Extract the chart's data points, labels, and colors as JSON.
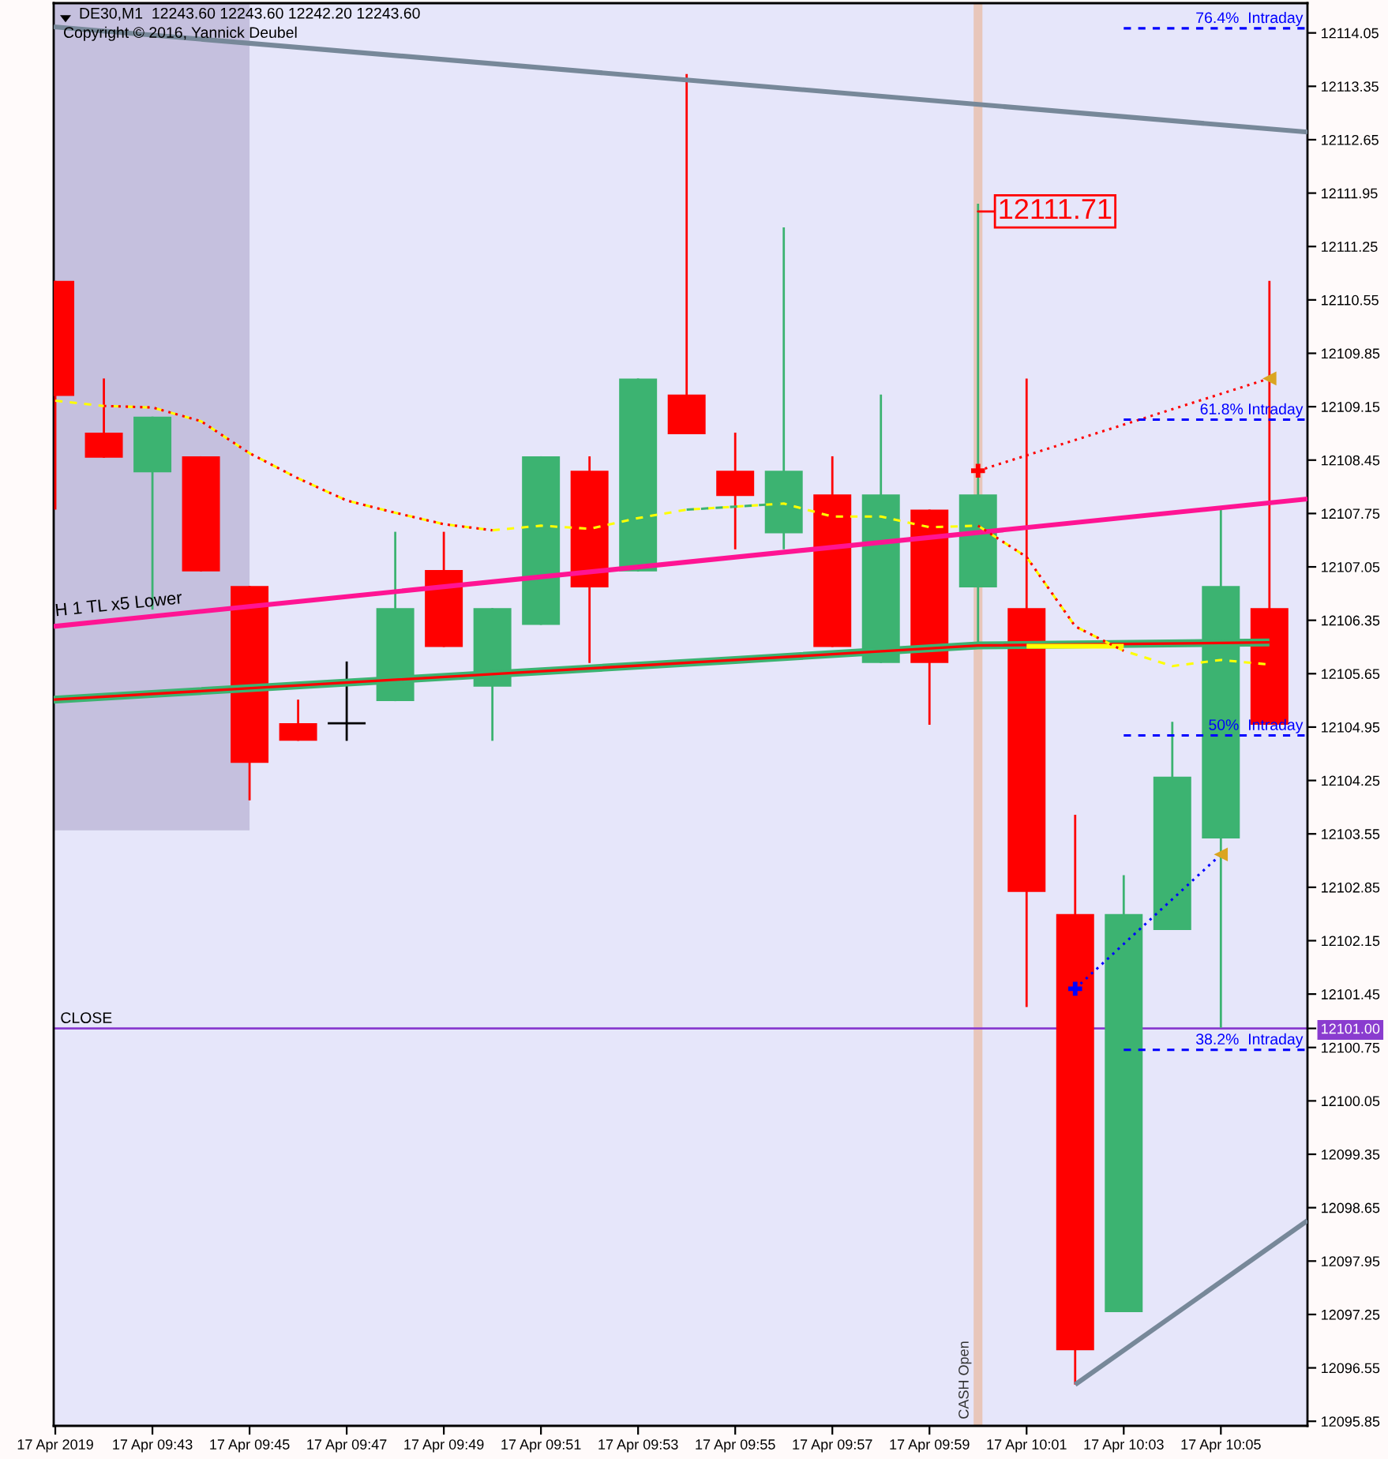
{
  "chart_data": {
    "type": "candlestick",
    "title": "DE30,M1  12243.60 12243.60 12242.20 12243.60",
    "annotations": [
      "Copyright © 2016, Yannick Deubel",
      {
        "text": "12111.71",
        "x": "2019-04-17T10:00",
        "y": 12111.71
      }
    ],
    "x": [
      "2019-04-17T09:41",
      "2019-04-17T09:42",
      "2019-04-17T09:43",
      "2019-04-17T09:44",
      "2019-04-17T09:45",
      "2019-04-17T09:46",
      "2019-04-17T09:47",
      "2019-04-17T09:48",
      "2019-04-17T09:49",
      "2019-04-17T09:50",
      "2019-04-17T09:51",
      "2019-04-17T09:52",
      "2019-04-17T09:53",
      "2019-04-17T09:54",
      "2019-04-17T09:55",
      "2019-04-17T09:56",
      "2019-04-17T09:57",
      "2019-04-17T09:58",
      "2019-04-17T09:59",
      "2019-04-17T10:00",
      "2019-04-17T10:01",
      "2019-04-17T10:02",
      "2019-04-17T10:03",
      "2019-04-17T10:04",
      "2019-04-17T10:05",
      "2019-04-17T10:06"
    ],
    "ohlc": [
      [
        12110.8,
        12110.8,
        12107.8,
        12109.29
      ],
      [
        12108.81,
        12109.52,
        12108.48,
        12108.48
      ],
      [
        12108.29,
        12109.02,
        12106.49,
        12109.02
      ],
      [
        12108.5,
        12108.5,
        12106.99,
        12106.99
      ],
      [
        12106.8,
        12106.8,
        12103.99,
        12104.48
      ],
      [
        12105.0,
        12105.31,
        12104.77,
        12104.77
      ],
      [
        12105.0,
        12105.81,
        12104.77,
        12105.0
      ],
      [
        12105.29,
        12107.51,
        12105.29,
        12106.51
      ],
      [
        12107.01,
        12107.51,
        12106.0,
        12106.0
      ],
      [
        12105.48,
        12106.51,
        12104.77,
        12106.51
      ],
      [
        12106.29,
        12108.5,
        12106.29,
        12108.5
      ],
      [
        12108.31,
        12108.5,
        12105.79,
        12106.78
      ],
      [
        12106.99,
        12109.52,
        12106.99,
        12109.52
      ],
      [
        12109.31,
        12113.51,
        12108.79,
        12108.79
      ],
      [
        12108.31,
        12108.81,
        12107.28,
        12107.98
      ],
      [
        12107.49,
        12111.5,
        12107.28,
        12108.31
      ],
      [
        12108.0,
        12108.5,
        12106.0,
        12106.0
      ],
      [
        12105.79,
        12109.31,
        12105.79,
        12108.0
      ],
      [
        12107.8,
        12107.8,
        12104.98,
        12105.79
      ],
      [
        12106.78,
        12111.81,
        12106.0,
        12108.0
      ],
      [
        12106.51,
        12109.52,
        12101.28,
        12102.79
      ],
      [
        12102.5,
        12103.8,
        12096.33,
        12096.78
      ],
      [
        12097.28,
        12103.01,
        12097.28,
        12102.5
      ],
      [
        12102.29,
        12105.02,
        12102.29,
        12104.3
      ],
      [
        12103.49,
        12107.8,
        12101.01,
        12106.8
      ],
      [
        12106.51,
        12110.8,
        12104.98,
        12104.98
      ]
    ],
    "colors": [
      "#ff0000",
      "#ff0000",
      "#3cb371",
      "#ff0000",
      "#ff0000",
      "#ff0000",
      "#000000",
      "#3cb371",
      "#ff0000",
      "#3cb371",
      "#3cb371",
      "#ff0000",
      "#3cb371",
      "#ff0000",
      "#ff0000",
      "#3cb371",
      "#ff0000",
      "#3cb371",
      "#ff0000",
      "#3cb371",
      "#ff0000",
      "#ff0000",
      "#3cb371",
      "#3cb371",
      "#3cb371",
      "#ff0000"
    ],
    "series": [
      {
        "type": "line",
        "x": [
          "2019-04-17T09:40:58",
          "2019-04-17T09:45"
        ],
        "values": [
          12103.61,
          12103.61
        ],
        "lower": [
          12103.61,
          12103.61
        ],
        "upper": [
          12114.44,
          12114.44
        ],
        "color": "#c5c0de"
      },
      {
        "type": "line",
        "x": [
          "2019-04-17T09:40:58",
          "2019-04-17T10:06:47"
        ],
        "values": [
          12114.13,
          12112.75
        ],
        "color": "#778899"
      },
      {
        "type": "line",
        "x": [
          "2019-04-17T10:02",
          "2019-04-17T10:06:47"
        ],
        "values": [
          12096.33,
          12098.48
        ],
        "color": "#778899"
      },
      {
        "type": "line",
        "name": "H 1 TL x5 Lower",
        "x": [
          "2019-04-17T09:40:58",
          "2019-04-17T10:06:47"
        ],
        "values": [
          12106.27,
          12107.94
        ],
        "color": "#ff1493"
      },
      {
        "type": "line",
        "x": [
          "2019-04-17T09:40:58",
          "2019-04-17T09:55",
          "2019-04-17T10:00",
          "2019-04-17T10:06"
        ],
        "values": [
          12105.31,
          12105.83,
          12106.02,
          12106.06
        ],
        "color": "#3cb371"
      },
      {
        "type": "line",
        "x": [
          "2019-04-17T09:40:58",
          "2019-04-17T09:55",
          "2019-04-17T10:00",
          "2019-04-17T10:06"
        ],
        "values": [
          12105.31,
          12105.83,
          12106.02,
          12106.06
        ],
        "color": "#ff0000"
      },
      {
        "type": "line",
        "x": [
          "2019-04-17T10:01",
          "2019-04-17T10:03"
        ],
        "values": [
          12106.01,
          12106.01
        ],
        "color": "#ffff00"
      },
      {
        "type": "line",
        "line_style": "dashed",
        "color": "#ffff00",
        "x": [
          "2019-04-17T09:41",
          "2019-04-17T09:42",
          "2019-04-17T09:43",
          "2019-04-17T09:44",
          "2019-04-17T09:45",
          "2019-04-17T09:46",
          "2019-04-17T09:47",
          "2019-04-17T09:48",
          "2019-04-17T09:49",
          "2019-04-17T09:50",
          "2019-04-17T09:51",
          "2019-04-17T09:52",
          "2019-04-17T09:53",
          "2019-04-17T09:54",
          "2019-04-17T09:55",
          "2019-04-17T09:56",
          "2019-04-17T09:57",
          "2019-04-17T09:58",
          "2019-04-17T09:59",
          "2019-04-17T10:00",
          "2019-04-17T10:01",
          "2019-04-17T10:02",
          "2019-04-17T10:03",
          "2019-04-17T10:04",
          "2019-04-17T10:05",
          "2019-04-17T10:06"
        ],
        "values": [
          12109.23,
          12109.16,
          12109.14,
          12108.96,
          12108.54,
          12108.21,
          12107.92,
          12107.76,
          12107.61,
          12107.53,
          12107.59,
          12107.55,
          12107.69,
          12107.8,
          12107.84,
          12107.88,
          12107.71,
          12107.71,
          12107.57,
          12107.59,
          12107.18,
          12106.27,
          12105.95,
          12105.75,
          12105.83,
          12105.77
        ]
      },
      {
        "type": "line",
        "line_style": "dotted",
        "color": "#ff0000",
        "x": [
          "2019-04-17T09:42",
          "2019-04-17T09:43",
          "2019-04-17T09:44",
          "2019-04-17T09:45",
          "2019-04-17T09:46",
          "2019-04-17T09:47",
          "2019-04-17T09:48",
          "2019-04-17T09:49",
          "2019-04-17T09:50"
        ],
        "values": [
          12109.16,
          12109.14,
          12108.96,
          12108.54,
          12108.21,
          12107.92,
          12107.76,
          12107.61,
          12107.53
        ]
      },
      {
        "type": "line",
        "line_style": "dotted",
        "color": "#ff0000",
        "x": [
          "2019-04-17T10:00",
          "2019-04-17T10:01",
          "2019-04-17T10:02",
          "2019-04-17T10:03"
        ],
        "values": [
          12107.59,
          12107.18,
          12106.27,
          12105.95
        ]
      },
      {
        "type": "line",
        "line_style": "dashed",
        "color": "#3cb371",
        "x": [
          "2019-04-17T09:54",
          "2019-04-17T09:55",
          "2019-04-17T09:56"
        ],
        "values": [
          12107.8,
          12107.84,
          12107.88
        ]
      },
      {
        "type": "line",
        "line_style": "dotted",
        "color": "#ff0000",
        "x": [
          "2019-04-17T10:00",
          "2019-04-17T10:06"
        ],
        "values": [
          12108.31,
          12109.52
        ]
      },
      {
        "type": "line",
        "line_style": "dotted",
        "color": "#0000ff",
        "x": [
          "2019-04-17T10:02",
          "2019-04-17T10:05"
        ],
        "values": [
          12101.52,
          12103.28
        ]
      },
      {
        "type": "scatter",
        "marker": "triangle",
        "color": "#daa520",
        "x": [
          "2019-04-17T10:06",
          "2019-04-17T10:05"
        ],
        "values": [
          12109.52,
          12103.28
        ]
      },
      {
        "type": "scatter",
        "marker": "cross",
        "color": "#ff0000",
        "x": [
          "2019-04-17T10:00"
        ],
        "values": [
          12108.31
        ]
      },
      {
        "type": "scatter",
        "marker": "cross",
        "color": "#0000ff",
        "x": [
          "2019-04-17T10:02"
        ],
        "values": [
          12101.52
        ]
      },
      {
        "type": "line",
        "line_style": "dashed",
        "name": "76.4%  Intraday",
        "color": "#0000ff",
        "x": [
          "2019-04-17T10:03",
          "2019-04-17T10:06:47"
        ],
        "values": [
          12114.11,
          12114.11
        ]
      },
      {
        "type": "line",
        "line_style": "dashed",
        "name": "61.8% Intraday",
        "color": "#0000ff",
        "x": [
          "2019-04-17T10:03",
          "2019-04-17T10:06:47"
        ],
        "values": [
          12108.98,
          12108.98
        ]
      },
      {
        "type": "line",
        "line_style": "dashed",
        "name": "50%  Intraday",
        "color": "#0000ff",
        "x": [
          "2019-04-17T10:03",
          "2019-04-17T10:06:47"
        ],
        "values": [
          12104.84,
          12104.84
        ]
      },
      {
        "type": "line",
        "line_style": "dashed",
        "name": "38.2%  Intraday",
        "color": "#0000ff",
        "x": [
          "2019-04-17T10:03",
          "2019-04-17T10:06:47"
        ],
        "values": [
          12100.72,
          12100.72
        ]
      }
    ],
    "ref_lines": [
      {
        "axis": "x",
        "value": "2019-04-17T10:00",
        "label": "CASH Open",
        "color": "#e8c6ba"
      },
      {
        "axis": "y",
        "value": 12101.0,
        "label": "CLOSE",
        "color": "#8a3ccf"
      }
    ],
    "xlim": [
      "2019-04-17T09:40:58",
      "2019-04-17T10:06:47"
    ],
    "xticks": [
      {
        "value": "2019-04-17T09:41",
        "label": "17 Apr 2019"
      },
      {
        "value": "2019-04-17T09:43",
        "label": "17 Apr 09:43"
      },
      {
        "value": "2019-04-17T09:45",
        "label": "17 Apr 09:45"
      },
      {
        "value": "2019-04-17T09:47",
        "label": "17 Apr 09:47"
      },
      {
        "value": "2019-04-17T09:49",
        "label": "17 Apr 09:49"
      },
      {
        "value": "2019-04-17T09:51",
        "label": "17 Apr 09:51"
      },
      {
        "value": "2019-04-17T09:53",
        "label": "17 Apr 09:53"
      },
      {
        "value": "2019-04-17T09:55",
        "label": "17 Apr 09:55"
      },
      {
        "value": "2019-04-17T09:57",
        "label": "17 Apr 09:57"
      },
      {
        "value": "2019-04-17T09:59",
        "label": "17 Apr 09:59"
      },
      {
        "value": "2019-04-17T10:01",
        "label": "17 Apr 10:01"
      },
      {
        "value": "2019-04-17T10:03",
        "label": "17 Apr 10:03"
      },
      {
        "value": "2019-04-17T10:05",
        "label": "17 Apr 10:05"
      }
    ],
    "ylim": [
      12095.79,
      12114.44
    ],
    "yticks": [
      12114.05,
      12113.35,
      12112.65,
      12111.95,
      12111.25,
      12110.55,
      12109.85,
      12109.15,
      12108.45,
      12107.75,
      12107.05,
      12106.35,
      12105.65,
      12104.95,
      12104.25,
      12103.55,
      12102.85,
      12102.15,
      12101.45,
      {
        "value": 12101.0,
        "label": "12101.00"
      },
      12100.75,
      12100.05,
      12099.35,
      12098.65,
      12097.95,
      12097.25,
      12096.55,
      12095.85
    ]
  }
}
